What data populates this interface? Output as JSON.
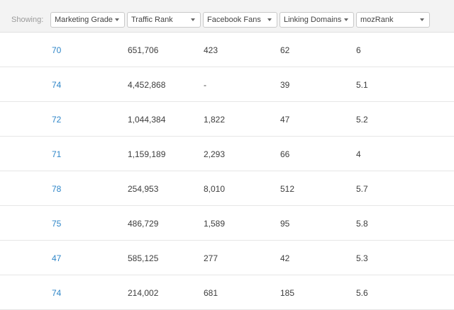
{
  "toolbar": {
    "showing_label": "Showing:",
    "columns": [
      {
        "label": "Marketing Grade"
      },
      {
        "label": "Traffic Rank"
      },
      {
        "label": "Facebook Fans"
      },
      {
        "label": "Linking Domains"
      },
      {
        "label": "mozRank"
      }
    ]
  },
  "rows": [
    {
      "grade": "70",
      "traffic_rank": "651,706",
      "facebook_fans": "423",
      "linking_domains": "62",
      "mozrank": "6"
    },
    {
      "grade": "74",
      "traffic_rank": "4,452,868",
      "facebook_fans": "-",
      "linking_domains": "39",
      "mozrank": "5.1"
    },
    {
      "grade": "72",
      "traffic_rank": "1,044,384",
      "facebook_fans": "1,822",
      "linking_domains": "47",
      "mozrank": "5.2"
    },
    {
      "grade": "71",
      "traffic_rank": "1,159,189",
      "facebook_fans": "2,293",
      "linking_domains": "66",
      "mozrank": "4"
    },
    {
      "grade": "78",
      "traffic_rank": "254,953",
      "facebook_fans": "8,010",
      "linking_domains": "512",
      "mozrank": "5.7"
    },
    {
      "grade": "75",
      "traffic_rank": "486,729",
      "facebook_fans": "1,589",
      "linking_domains": "95",
      "mozrank": "5.8"
    },
    {
      "grade": "47",
      "traffic_rank": "585,125",
      "facebook_fans": "277",
      "linking_domains": "42",
      "mozrank": "5.3"
    },
    {
      "grade": "74",
      "traffic_rank": "214,002",
      "facebook_fans": "681",
      "linking_domains": "185",
      "mozrank": "5.6"
    }
  ],
  "colors": {
    "grade_link": "#2f86c8",
    "toolbar_bg": "#f3f3f3"
  },
  "icons": {
    "dropdown": "chevron-down-icon"
  }
}
